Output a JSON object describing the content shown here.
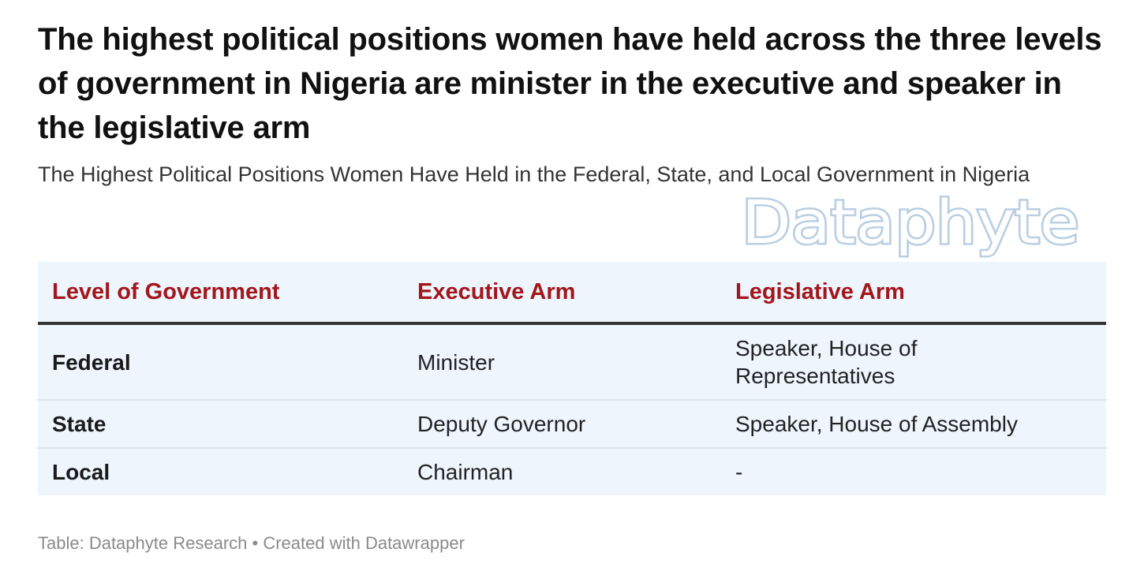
{
  "title": "The highest political positions women have held across the three levels of government in Nigeria are minister in the executive and speaker in the legislative arm",
  "subtitle": "The Highest Political Positions Women Have Held in the Federal, State, and Local Government in Nigeria",
  "logo_text": "Dataphyte",
  "colors": {
    "header_text": "#a3161b",
    "table_background": "#eef5fd",
    "logo": "#b9cfe2"
  },
  "chart_data": {
    "type": "table",
    "columns": [
      "Level of Government",
      "Executive Arm",
      "Legislative Arm"
    ],
    "rows": [
      [
        "Federal",
        "Minister",
        "Speaker, House of Representatives"
      ],
      [
        "State",
        "Deputy Governor",
        "Speaker, House of Assembly"
      ],
      [
        "Local",
        "Chairman",
        "-"
      ]
    ]
  },
  "footer": {
    "source": "Table: Dataphyte Research",
    "separator": "•",
    "credit": "Created with Datawrapper"
  }
}
